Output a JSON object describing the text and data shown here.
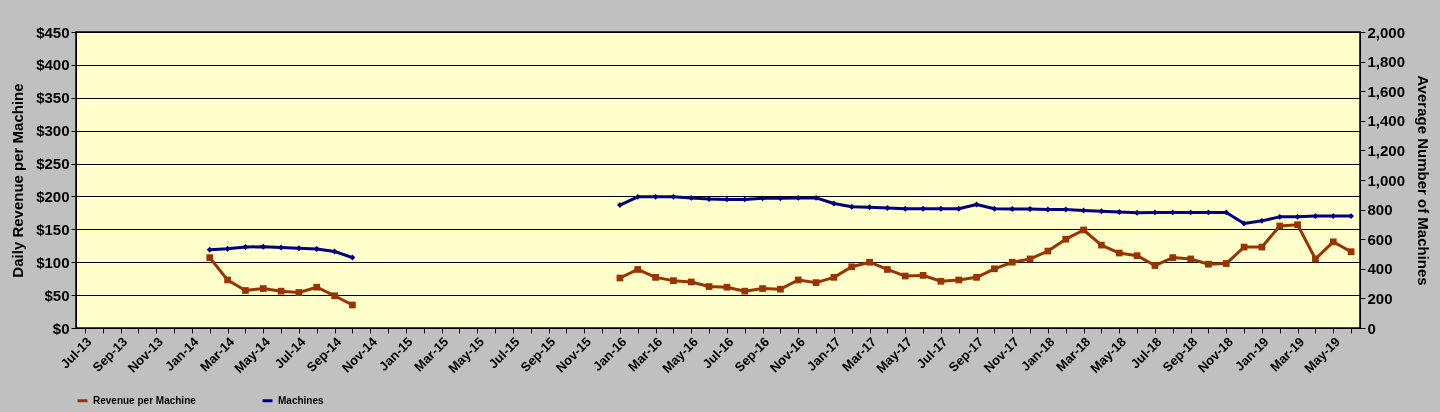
{
  "chart_data": {
    "type": "line",
    "xlabel": null,
    "ylabel": "Daily Revenue per Machine",
    "y2label": "Average Number of Machines",
    "categories": [
      "Jul-13",
      null,
      "Sep-13",
      null,
      "Nov-13",
      null,
      "Jan-14",
      null,
      "Mar-14",
      null,
      "May-14",
      null,
      "Jul-14",
      null,
      "Sep-14",
      null,
      "Nov-14",
      null,
      "Jan-15",
      null,
      "Mar-15",
      null,
      "May-15",
      null,
      "Jul-15",
      null,
      "Sep-15",
      null,
      "Nov-15",
      null,
      "Jan-16",
      null,
      "Mar-16",
      null,
      "May-16",
      null,
      "Jul-16",
      null,
      "Sep-16",
      null,
      "Nov-16",
      null,
      "Jan-17",
      null,
      "Mar-17",
      null,
      "May-17",
      null,
      "Jul-17",
      null,
      "Sep-17",
      null,
      "Nov-17",
      null,
      "Jan-18",
      null,
      "Mar-18",
      null,
      "May-18",
      null,
      "Jul-18",
      null,
      "Sep-18",
      null,
      "Nov-18",
      null,
      "Jan-19",
      null,
      "Mar-19",
      null,
      "May-19",
      null
    ],
    "series": [
      {
        "name": "Revenue per Machine",
        "color": "#993300",
        "marker": "square",
        "values": [
          null,
          null,
          null,
          null,
          null,
          null,
          null,
          107,
          73,
          57,
          60,
          56,
          54,
          62,
          49,
          35,
          null,
          null,
          null,
          null,
          null,
          null,
          null,
          null,
          null,
          null,
          null,
          null,
          null,
          null,
          76,
          89,
          77,
          72,
          70,
          63,
          62,
          56,
          60,
          59,
          73,
          69,
          77,
          93,
          100,
          89,
          79,
          80,
          71,
          73,
          77,
          90,
          100,
          105,
          117,
          135,
          149,
          126,
          114,
          110,
          95,
          107,
          105,
          97,
          98,
          123,
          123,
          155,
          157,
          105,
          131,
          116
        ]
      },
      {
        "name": "Machines",
        "color": "#000080",
        "marker": "diamond",
        "axis": "y2",
        "values": [
          null,
          null,
          null,
          null,
          null,
          null,
          null,
          529,
          536,
          547,
          549,
          544,
          539,
          534,
          517,
          476,
          null,
          null,
          null,
          null,
          null,
          null,
          null,
          null,
          null,
          null,
          null,
          null,
          null,
          null,
          831,
          886,
          886,
          886,
          879,
          871,
          869,
          869,
          876,
          876,
          879,
          879,
          841,
          819,
          816,
          811,
          806,
          806,
          806,
          806,
          834,
          806,
          804,
          804,
          801,
          801,
          794,
          789,
          784,
          779,
          781,
          781,
          781,
          781,
          781,
          706,
          724,
          751,
          751,
          756,
          756,
          756
        ]
      }
    ],
    "ylim": [
      0,
      450
    ],
    "yticks": [
      {
        "value": 0,
        "label": "$0"
      },
      {
        "value": 50,
        "label": "$50"
      },
      {
        "value": 100,
        "label": "$100"
      },
      {
        "value": 150,
        "label": "$150"
      },
      {
        "value": 200,
        "label": "$200"
      },
      {
        "value": 250,
        "label": "$250"
      },
      {
        "value": 300,
        "label": "$300"
      },
      {
        "value": 350,
        "label": "$350"
      },
      {
        "value": 400,
        "label": "$400"
      },
      {
        "value": 450,
        "label": "$450"
      }
    ],
    "y2lim": [
      0,
      2000
    ],
    "y2ticks": [
      0,
      200,
      400,
      600,
      800,
      {
        "value": 1000,
        "label": "1,000"
      },
      {
        "value": 1200,
        "label": "1,200"
      },
      {
        "value": 1400,
        "label": "1,400"
      },
      {
        "value": 1600,
        "label": "1,600"
      },
      {
        "value": 1800,
        "label": "1,800"
      },
      {
        "value": 2000,
        "label": "2,000"
      }
    ],
    "grid": "y",
    "legend": "bottom",
    "line_style": "solid"
  }
}
